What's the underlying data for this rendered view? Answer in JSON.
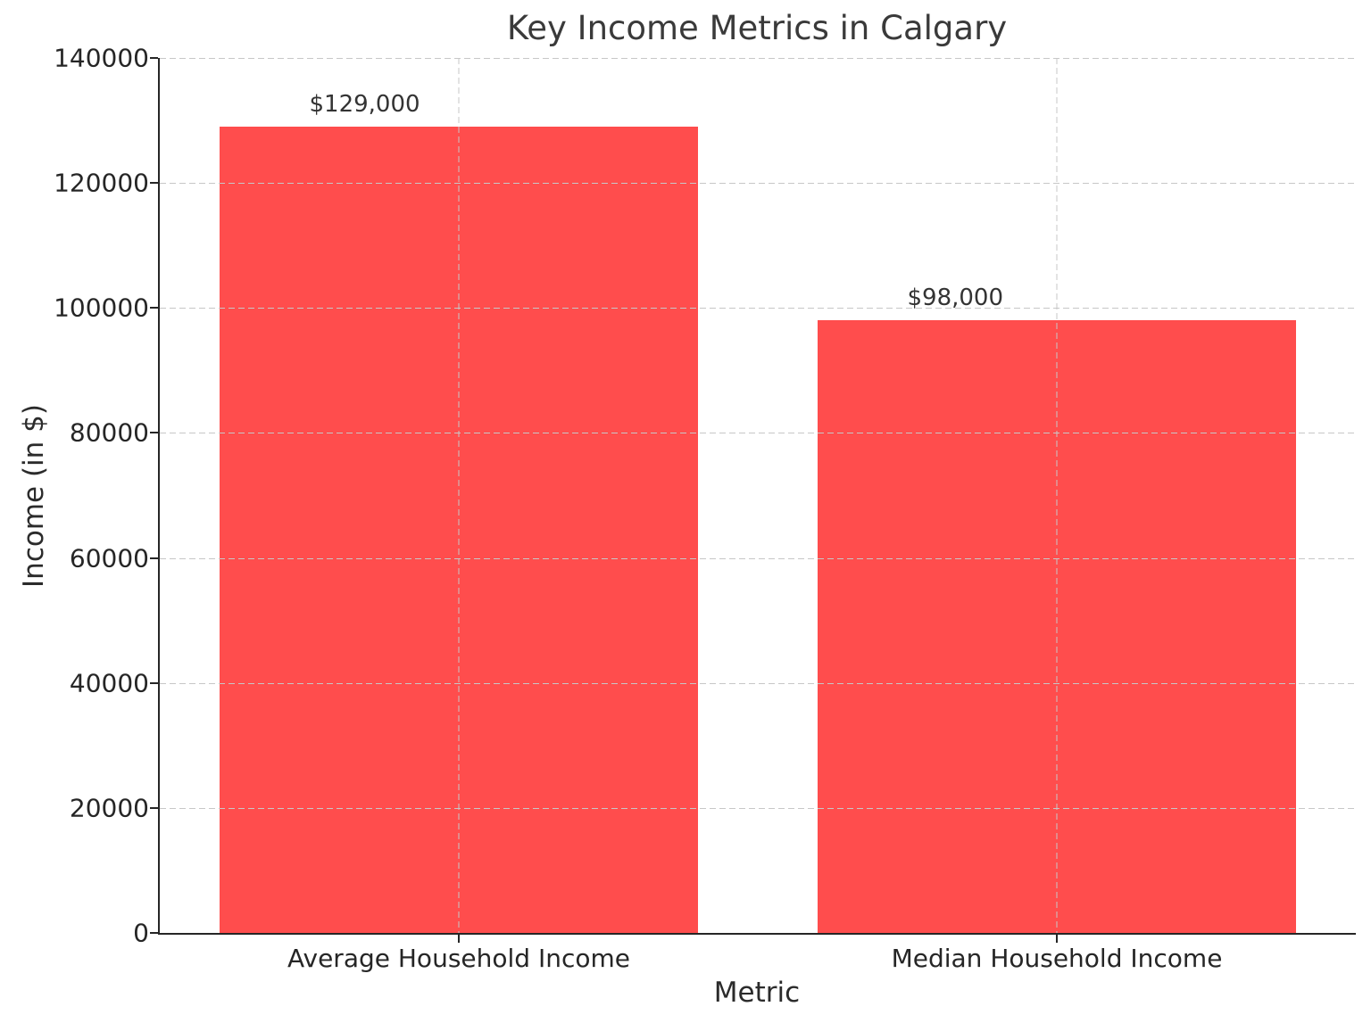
{
  "chart_data": {
    "type": "bar",
    "title": "Key Income Metrics in Calgary",
    "xlabel": "Metric",
    "ylabel": "Income (in $)",
    "categories": [
      "Average Household Income",
      "Median Household Income"
    ],
    "values": [
      129000,
      98000
    ],
    "bar_value_labels": [
      "$129,000",
      "$98,000"
    ],
    "ylim": [
      0,
      140000
    ],
    "ytick_interval": 20000,
    "ytick_labels": [
      "0",
      "20000",
      "40000",
      "60000",
      "80000",
      "100000",
      "120000",
      "140000"
    ],
    "grid": "dashed gridlines, horizontal at each ytick and vertical at each category center, drawn above bars",
    "legend": "none",
    "colors": {
      "bar": "#FF4D4D",
      "grid": "#c7c7c7",
      "spine": "#262626",
      "tick_text": "#262626",
      "title_text": "#3a3a3a",
      "background": "#ffffff"
    }
  }
}
